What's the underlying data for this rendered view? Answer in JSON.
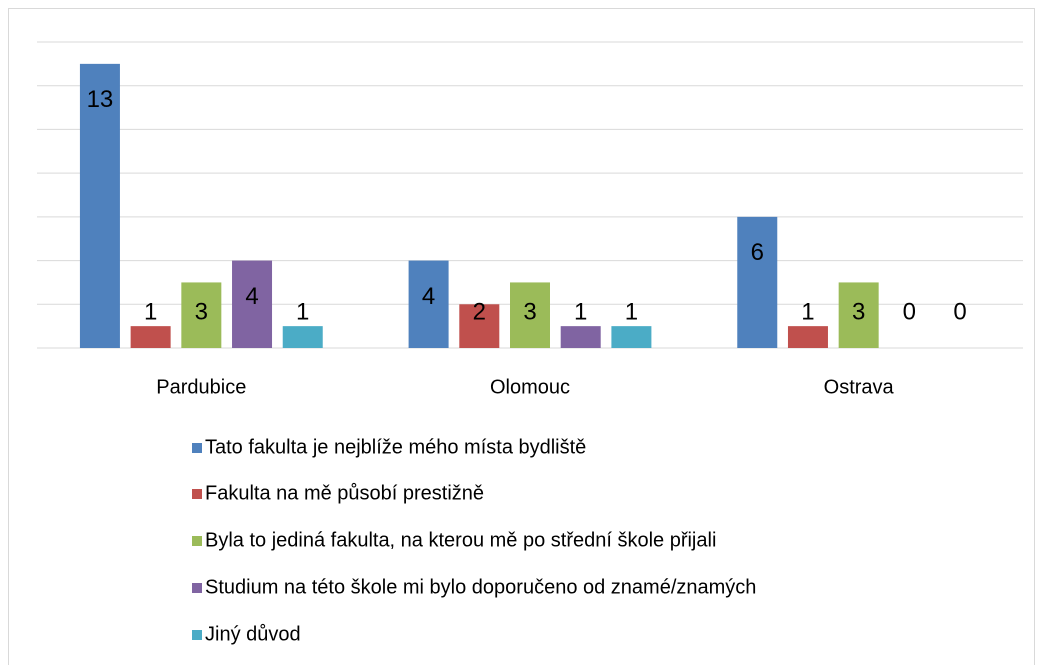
{
  "chart_data": {
    "type": "bar",
    "categories": [
      "Pardubice",
      "Olomouc",
      "Ostrava"
    ],
    "series": [
      {
        "name": "Tato fakulta je nejblíže mého místa bydliště",
        "color": "#4f81bd",
        "values": [
          13,
          4,
          6
        ]
      },
      {
        "name": "Fakulta na mě působí prestižně",
        "color": "#c0504d",
        "values": [
          1,
          2,
          1
        ]
      },
      {
        "name": "Byla to jediná fakulta, na kterou mě po střední škole přijali",
        "color": "#9bbb59",
        "values": [
          3,
          3,
          3
        ]
      },
      {
        "name": "Studium na této škole mi bylo doporučeno od znamé/znamých",
        "color": "#8064a2",
        "values": [
          4,
          1,
          0
        ]
      },
      {
        "name": "Jiný důvod",
        "color": "#4bacc6",
        "values": [
          1,
          1,
          0
        ]
      }
    ],
    "ylim": [
      0,
      14
    ],
    "yticks": [
      0,
      2,
      4,
      6,
      8,
      10,
      12,
      14
    ],
    "grid": true,
    "legend": "bottom"
  }
}
